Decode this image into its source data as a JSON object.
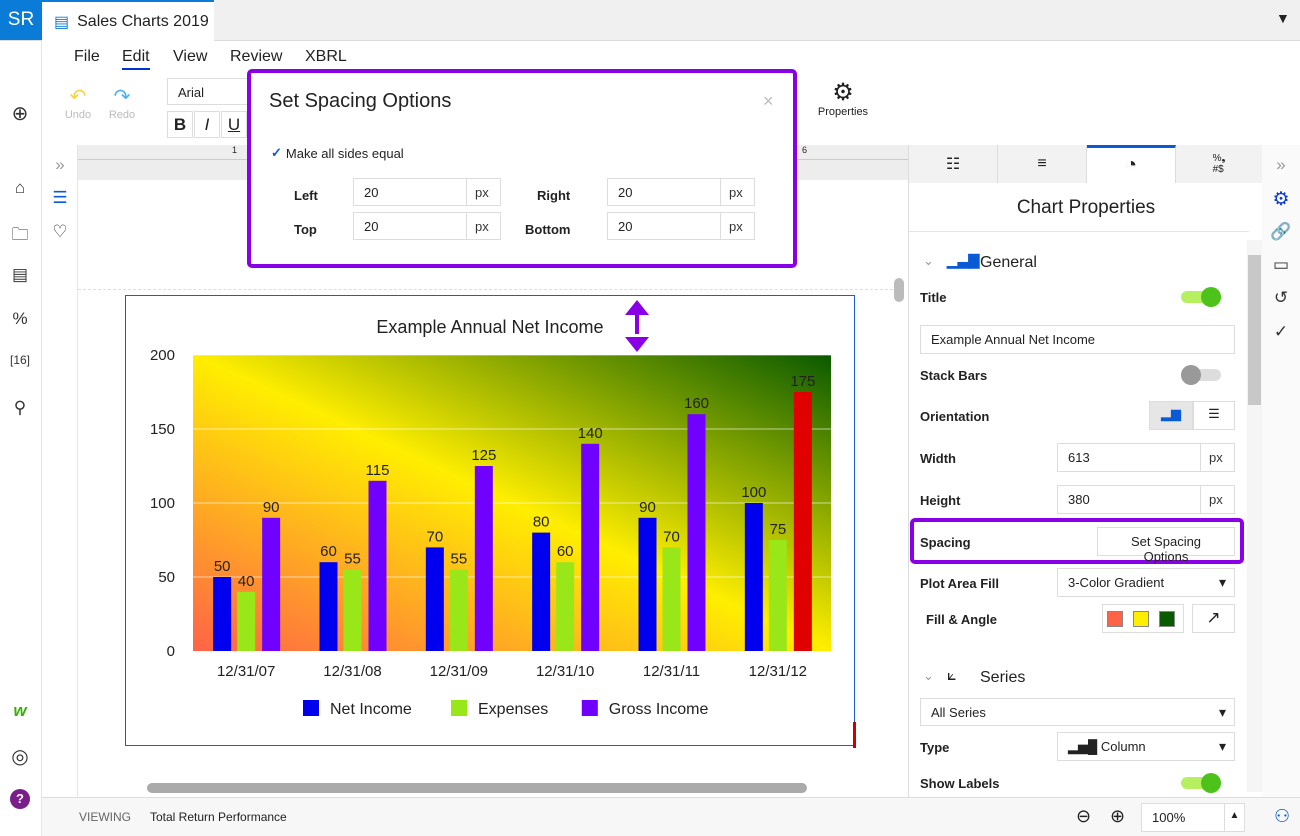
{
  "app": {
    "logo": "SR",
    "tab_title": "Sales Charts 2019"
  },
  "menu": [
    "File",
    "Edit",
    "View",
    "Review",
    "XBRL"
  ],
  "toolbar": {
    "undo": "Undo",
    "redo": "Redo",
    "font": "Arial",
    "bold": "B",
    "italic": "I",
    "underline": "U",
    "properties": "Properties",
    "ruler_marks": [
      "1",
      "6"
    ]
  },
  "dialog": {
    "title": "Set Spacing Options",
    "close": "×",
    "equal_label": "Make all sides equal",
    "equal_checked": true,
    "left_label": "Left",
    "left": "20",
    "right_label": "Right",
    "right": "20",
    "top_label": "Top",
    "top": "20",
    "bottom_label": "Bottom",
    "bottom": "20",
    "unit": "px"
  },
  "panel": {
    "tabs": [
      "list-tree",
      "paragraph",
      "chart-pie",
      "number-format"
    ],
    "title": "Chart Properties",
    "general": "General",
    "title_label": "Title",
    "title_on": true,
    "title_value": "Example Annual Net Income",
    "stack_label": "Stack Bars",
    "stack_on": false,
    "orientation_label": "Orientation",
    "width_label": "Width",
    "width": "613",
    "height_label": "Height",
    "height": "380",
    "unit": "px",
    "spacing_label": "Spacing",
    "spacing_button": "Set Spacing Options",
    "plot_fill_label": "Plot Area Fill",
    "plot_fill": "3-Color Gradient",
    "fill_angle_label": "Fill & Angle",
    "fill_colors": [
      "#ff6347",
      "#ffee00",
      "#0a5a00"
    ],
    "series": "Series",
    "series_select": "All Series",
    "type_label": "Type",
    "type": "Column",
    "show_labels_label": "Show Labels",
    "show_labels_on": true
  },
  "status": {
    "mode": "VIEWING",
    "doc": "Total Return Performance",
    "zoom": "100%"
  },
  "chart_data": {
    "type": "bar",
    "title": "Example Annual Net Income",
    "categories": [
      "12/31/07",
      "12/31/08",
      "12/31/09",
      "12/31/10",
      "12/31/11",
      "12/31/12"
    ],
    "series": [
      {
        "name": "Net Income",
        "color": "#0000ee",
        "values": [
          50,
          60,
          70,
          80,
          90,
          100
        ]
      },
      {
        "name": "Expenses",
        "color": "#99e619",
        "values": [
          40,
          55,
          55,
          60,
          70,
          75
        ]
      },
      {
        "name": "Gross Income",
        "color": "#7000ff",
        "values": [
          90,
          115,
          125,
          140,
          160,
          175
        ]
      }
    ],
    "highlight": {
      "series": "Gross Income",
      "category": "12/31/12",
      "color": "#e00000"
    },
    "yticks": [
      0,
      50,
      100,
      150,
      200
    ],
    "ylim": [
      0,
      200
    ],
    "grid": true,
    "legend": "bottom",
    "plot_gradient": [
      "#ff6347",
      "#ffee00",
      "#0a5a00"
    ]
  }
}
